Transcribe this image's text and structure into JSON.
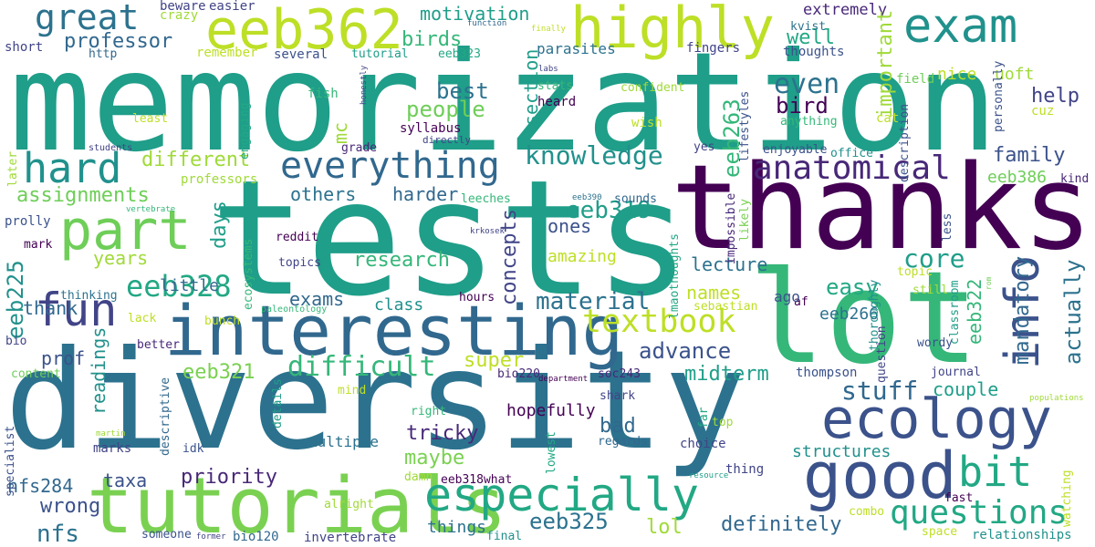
{
  "words": [
    {
      "text": "memorization",
      "color": "#1f9e89"
    },
    {
      "text": "tests",
      "color": "#1f9e89"
    },
    {
      "text": "diversity",
      "color": "#2c728e"
    },
    {
      "text": "thanks",
      "color": "#440154"
    },
    {
      "text": "lot",
      "color": "#35b779"
    },
    {
      "text": "tutorials",
      "color": "#7ad151"
    },
    {
      "text": "interesting",
      "color": "#31688e"
    },
    {
      "text": "good",
      "color": "#3b528b"
    },
    {
      "text": "eeb362",
      "color": "#bddf26"
    },
    {
      "text": "exam",
      "color": "#21918c"
    },
    {
      "text": "ecology",
      "color": "#3b528b"
    },
    {
      "text": "highly",
      "color": "#bddf26"
    },
    {
      "text": "part",
      "color": "#6ece58"
    },
    {
      "text": "hard",
      "color": "#21918c"
    },
    {
      "text": "great",
      "color": "#2c728e"
    },
    {
      "text": "fun",
      "color": "#414487"
    },
    {
      "text": "especially",
      "color": "#22a884"
    },
    {
      "text": "everything",
      "color": "#31688e"
    },
    {
      "text": "info",
      "color": "#3b528b"
    },
    {
      "text": "bit",
      "color": "#22a884"
    },
    {
      "text": "questions",
      "color": "#22a884"
    },
    {
      "text": "anatomical",
      "color": "#482878"
    },
    {
      "text": "textbook",
      "color": "#bddf26"
    },
    {
      "text": "eeb328",
      "color": "#22a884"
    },
    {
      "text": "difficult",
      "color": "#35b779"
    },
    {
      "text": "knowledge",
      "color": "#21918c"
    },
    {
      "text": "professor",
      "color": "#31688e"
    },
    {
      "text": "motivation",
      "color": "#1f9e89"
    },
    {
      "text": "even",
      "color": "#2c728e"
    },
    {
      "text": "bird",
      "color": "#440154"
    },
    {
      "text": "well",
      "color": "#22a884"
    },
    {
      "text": "help",
      "color": "#414487"
    },
    {
      "text": "extremely",
      "color": "#482878"
    },
    {
      "text": "eeb263",
      "color": "#35b779"
    },
    {
      "text": "important",
      "color": "#a0da39"
    },
    {
      "text": "mandatory",
      "color": "#31688e"
    },
    {
      "text": "actually",
      "color": "#2c728e"
    },
    {
      "text": "eeb322",
      "color": "#35b779"
    },
    {
      "text": "eeb319",
      "color": "#1f9e89"
    },
    {
      "text": "family",
      "color": "#3b528b"
    },
    {
      "text": "eeb386",
      "color": "#6ece58"
    },
    {
      "text": "core",
      "color": "#1f9e89"
    },
    {
      "text": "easy",
      "color": "#22a884"
    },
    {
      "text": "material",
      "color": "#2c728e"
    },
    {
      "text": "exams",
      "color": "#31688e"
    },
    {
      "text": "stuff",
      "color": "#31688e"
    },
    {
      "text": "advance",
      "color": "#3b528b"
    },
    {
      "text": "eeb321",
      "color": "#7ad151"
    },
    {
      "text": "midterm",
      "color": "#1f9e89"
    },
    {
      "text": "definitely",
      "color": "#31688e"
    },
    {
      "text": "eeb325",
      "color": "#2c728e"
    },
    {
      "text": "priority",
      "color": "#482878"
    },
    {
      "text": "wrong",
      "color": "#3b528b"
    },
    {
      "text": "nfs",
      "color": "#2c728e"
    },
    {
      "text": "tricky",
      "color": "#482878"
    },
    {
      "text": "maybe",
      "color": "#7ad151"
    },
    {
      "text": "bad",
      "color": "#31688e"
    },
    {
      "text": "hopefully",
      "color": "#440154"
    },
    {
      "text": "people",
      "color": "#6ece58"
    },
    {
      "text": "best",
      "color": "#2c728e"
    },
    {
      "text": "section",
      "color": "#1f9e89"
    },
    {
      "text": "birds",
      "color": "#35b779"
    },
    {
      "text": "different",
      "color": "#a0da39"
    },
    {
      "text": "assignments",
      "color": "#6ece58"
    },
    {
      "text": "research",
      "color": "#35b779"
    },
    {
      "text": "concepts",
      "color": "#414487"
    },
    {
      "text": "days",
      "color": "#1f9e89"
    },
    {
      "text": "years",
      "color": "#a0da39"
    },
    {
      "text": "thank",
      "color": "#31688e"
    },
    {
      "text": "prof",
      "color": "#3b528b"
    },
    {
      "text": "readings",
      "color": "#21918c"
    },
    {
      "text": "others",
      "color": "#2c728e"
    },
    {
      "text": "harder",
      "color": "#31688e"
    },
    {
      "text": "ones",
      "color": "#3b528b"
    },
    {
      "text": "eeb225",
      "color": "#21918c"
    },
    {
      "text": "names",
      "color": "#bddf26"
    },
    {
      "text": "lecture",
      "color": "#2c728e"
    },
    {
      "text": "eeb266",
      "color": "#2c728e"
    },
    {
      "text": "couple",
      "color": "#1f9e89"
    },
    {
      "text": "super",
      "color": "#bddf26"
    },
    {
      "text": "structures",
      "color": "#21918c"
    },
    {
      "text": "lol",
      "color": "#a0da39"
    },
    {
      "text": "multiple",
      "color": "#2c728e"
    },
    {
      "text": "nfs284",
      "color": "#31688e"
    },
    {
      "text": "taxa",
      "color": "#3b528b"
    },
    {
      "text": "mc",
      "color": "#a0da39"
    },
    {
      "text": "class",
      "color": "#21918c"
    },
    {
      "text": "little",
      "color": "#31688e"
    },
    {
      "text": "amazing",
      "color": "#bddf26"
    },
    {
      "text": "uoft",
      "color": "#a0da39"
    },
    {
      "text": "nice",
      "color": "#bddf26"
    },
    {
      "text": "things",
      "color": "#2c728e"
    },
    {
      "text": "easier",
      "color": "#414487"
    },
    {
      "text": "beware",
      "color": "#414487"
    },
    {
      "text": "crazy",
      "color": "#a0da39"
    },
    {
      "text": "remember",
      "color": "#bddf26"
    },
    {
      "text": "several",
      "color": "#3b528b"
    },
    {
      "text": "tutorial",
      "color": "#1f9e89"
    },
    {
      "text": "eeb323",
      "color": "#22a884"
    },
    {
      "text": "parasites",
      "color": "#2c728e"
    },
    {
      "text": "fingers",
      "color": "#414487"
    },
    {
      "text": "kvist",
      "color": "#2c728e"
    },
    {
      "text": "thoughts",
      "color": "#3b528b"
    },
    {
      "text": "field",
      "color": "#6ece58"
    },
    {
      "text": "short",
      "color": "#414487"
    },
    {
      "text": "http",
      "color": "#31688e"
    },
    {
      "text": "fish",
      "color": "#35b779"
    },
    {
      "text": "least",
      "color": "#bddf26"
    },
    {
      "text": "students",
      "color": "#414487"
    },
    {
      "text": "engaging",
      "color": "#22a884"
    },
    {
      "text": "grade",
      "color": "#482878"
    },
    {
      "text": "syllabus",
      "color": "#440154"
    },
    {
      "text": "directly",
      "color": "#414487"
    },
    {
      "text": "stats",
      "color": "#35b779"
    },
    {
      "text": "heard",
      "color": "#440154"
    },
    {
      "text": "confident",
      "color": "#a0da39"
    },
    {
      "text": "wish",
      "color": "#bddf26"
    },
    {
      "text": "anything",
      "color": "#35b779"
    },
    {
      "text": "cat",
      "color": "#bddf26"
    },
    {
      "text": "cuz",
      "color": "#bddf26"
    },
    {
      "text": "yes",
      "color": "#414487"
    },
    {
      "text": "enjoyable",
      "color": "#3b528b"
    },
    {
      "text": "office",
      "color": "#21918c"
    },
    {
      "text": "kind",
      "color": "#482878"
    },
    {
      "text": "professors",
      "color": "#a0da39"
    },
    {
      "text": "later",
      "color": "#a0da39"
    },
    {
      "text": "vertebrate",
      "color": "#35b779"
    },
    {
      "text": "prolly",
      "color": "#3b528b"
    },
    {
      "text": "mark",
      "color": "#440154"
    },
    {
      "text": "ecosystems",
      "color": "#35b779"
    },
    {
      "text": "reddit",
      "color": "#440154"
    },
    {
      "text": "krkosek",
      "color": "#414487"
    },
    {
      "text": "eeb390",
      "color": "#2c728e"
    },
    {
      "text": "sounds",
      "color": "#31688e"
    },
    {
      "text": "leeches",
      "color": "#35b779"
    },
    {
      "text": "topics",
      "color": "#414487"
    },
    {
      "text": "hours",
      "color": "#440154"
    },
    {
      "text": "thinking",
      "color": "#2c728e"
    },
    {
      "text": "bunch",
      "color": "#bddf26"
    },
    {
      "text": "lack",
      "color": "#bddf26"
    },
    {
      "text": "paleontology",
      "color": "#35b779"
    },
    {
      "text": "better",
      "color": "#482878"
    },
    {
      "text": "bio",
      "color": "#414487"
    },
    {
      "text": "content",
      "color": "#6ece58"
    },
    {
      "text": "mind",
      "color": "#bddf26"
    },
    {
      "text": "bio220",
      "color": "#482878"
    },
    {
      "text": "department",
      "color": "#440154"
    },
    {
      "text": "soc243",
      "color": "#482878"
    },
    {
      "text": "thompson",
      "color": "#3b528b"
    },
    {
      "text": "journal",
      "color": "#414487"
    },
    {
      "text": "populations",
      "color": "#a0da39"
    },
    {
      "text": "specialist",
      "color": "#3b528b"
    },
    {
      "text": "martin",
      "color": "#a0da39"
    },
    {
      "text": "marks",
      "color": "#414487"
    },
    {
      "text": "idk",
      "color": "#3b528b"
    },
    {
      "text": "right",
      "color": "#35b779"
    },
    {
      "text": "shark",
      "color": "#414487"
    },
    {
      "text": "regards",
      "color": "#31688e"
    },
    {
      "text": "choice",
      "color": "#414487"
    },
    {
      "text": "top",
      "color": "#a0da39"
    },
    {
      "text": "alright",
      "color": "#a0da39"
    },
    {
      "text": "damn",
      "color": "#a0da39"
    },
    {
      "text": "eeb318what",
      "color": "#440154"
    },
    {
      "text": "thing",
      "color": "#414487"
    },
    {
      "text": "resource",
      "color": "#1f9e89"
    },
    {
      "text": "fast",
      "color": "#440154"
    },
    {
      "text": "combo",
      "color": "#bddf26"
    },
    {
      "text": "someone",
      "color": "#3b528b"
    },
    {
      "text": "former",
      "color": "#414487"
    },
    {
      "text": "bio120",
      "color": "#31688e"
    },
    {
      "text": "invertebrate",
      "color": "#414487"
    },
    {
      "text": "final",
      "color": "#21918c"
    },
    {
      "text": "space",
      "color": "#bddf26"
    },
    {
      "text": "relationships",
      "color": "#21918c"
    },
    {
      "text": "function",
      "color": "#31688e"
    },
    {
      "text": "finally",
      "color": "#bddf26"
    },
    {
      "text": "labs",
      "color": "#414487"
    },
    {
      "text": "honestly",
      "color": "#414487"
    },
    {
      "text": "sebastian",
      "color": "#bddf26"
    },
    {
      "text": "af",
      "color": "#440154"
    },
    {
      "text": "question",
      "color": "#414487"
    },
    {
      "text": "classroom",
      "color": "#1f9e89"
    },
    {
      "text": "ago",
      "color": "#3b528b"
    },
    {
      "text": "still",
      "color": "#a0da39"
    },
    {
      "text": "topic",
      "color": "#bddf26"
    },
    {
      "text": "wordy",
      "color": "#3b528b"
    },
    {
      "text": "watching",
      "color": "#bddf26"
    },
    {
      "text": "details",
      "color": "#1f9e89"
    },
    {
      "text": "descriptive",
      "color": "#31688e"
    },
    {
      "text": "lowest",
      "color": "#22a884"
    },
    {
      "text": "far",
      "color": "#22a884"
    },
    {
      "text": "lmaothoughts",
      "color": "#22a884"
    },
    {
      "text": "impossible",
      "color": "#482878"
    },
    {
      "text": "likely",
      "color": "#7ad151"
    },
    {
      "text": "thoroughly",
      "color": "#21918c"
    },
    {
      "text": "less",
      "color": "#3b528b"
    },
    {
      "text": "lifestyles",
      "color": "#3b528b"
    },
    {
      "text": "description",
      "color": "#3b528b"
    },
    {
      "text": "personally",
      "color": "#3b528b"
    },
    {
      "text": "rom",
      "color": "#6ece58"
    }
  ]
}
